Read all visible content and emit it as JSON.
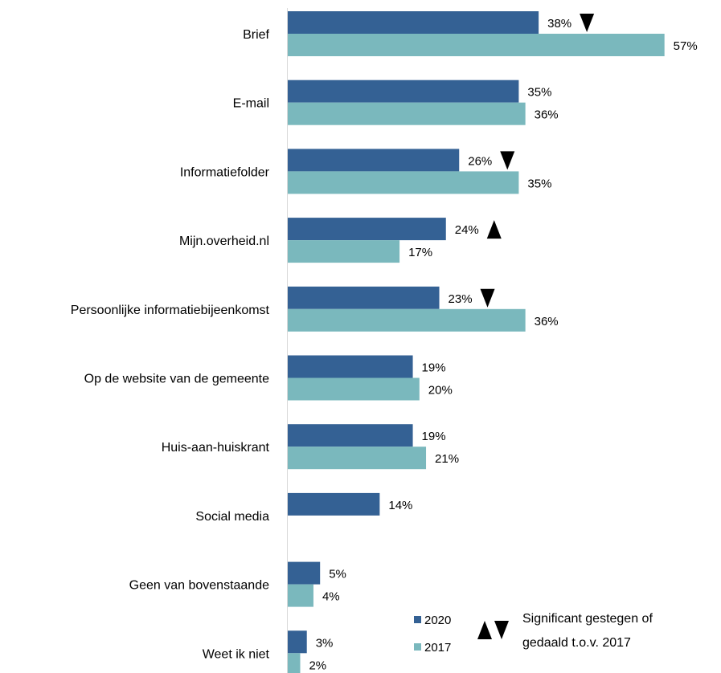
{
  "chart_data": {
    "type": "bar",
    "orientation": "horizontal",
    "categories": [
      "Brief",
      "E-mail",
      "Informatiefolder",
      "Mijn.overheid.nl",
      "Persoonlijke informatiebijeenkomst",
      "Op de website van de gemeente",
      "Huis-aan-huiskrant",
      "Social media",
      "Geen van bovenstaande",
      "Weet ik niet"
    ],
    "series": [
      {
        "name": "2020",
        "color": "#346194",
        "values": [
          38,
          35,
          26,
          24,
          23,
          19,
          19,
          14,
          5,
          3
        ],
        "labels": [
          "38%",
          "35%",
          "26%",
          "24%",
          "23%",
          "19%",
          "19%",
          "14%",
          "5%",
          "3%"
        ],
        "significance": [
          "down",
          null,
          "down",
          "up",
          "down",
          null,
          null,
          null,
          null,
          null
        ]
      },
      {
        "name": "2017",
        "color": "#7ab8bd",
        "values": [
          57,
          36,
          35,
          17,
          36,
          20,
          21,
          null,
          4,
          2
        ],
        "labels": [
          "57%",
          "36%",
          "35%",
          "17%",
          "36%",
          "20%",
          "21%",
          "",
          "4%",
          "2%"
        ]
      }
    ],
    "xlim": [
      0,
      60
    ],
    "grid": false,
    "legend": {
      "position": "bottom-right",
      "entries": [
        "2020",
        "2017"
      ],
      "note": [
        "Significant gestegen of",
        "gedaald t.o.v. 2017"
      ]
    }
  }
}
